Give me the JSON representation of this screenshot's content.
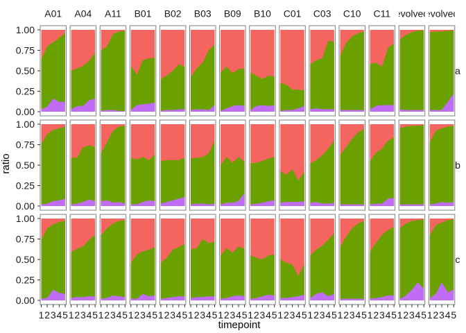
{
  "chart_data": {
    "type": "area",
    "stacked": true,
    "normalized": true,
    "xlabel": "timepoint",
    "ylabel": "ratio",
    "x": [
      1,
      2,
      3,
      4,
      5
    ],
    "y_ticks": [
      "0.00",
      "0.25",
      "0.50",
      "0.75",
      "1.00"
    ],
    "ylim": [
      0,
      1
    ],
    "columns": [
      "A01",
      "A04",
      "A11",
      "B01",
      "B02",
      "B03",
      "B09",
      "B10",
      "C01",
      "C03",
      "C10",
      "C11",
      "evolved",
      "evolved"
    ],
    "rows": [
      "a",
      "b",
      "c"
    ],
    "series_colors": {
      "purple": "#c06cf6",
      "green": "#6aa100",
      "red": "#f4655f"
    },
    "panels": [
      [
        {
          "column": "A01",
          "purple": [
            0.03,
            0.06,
            0.16,
            0.12,
            0.12
          ],
          "top": [
            0.64,
            0.8,
            0.85,
            0.9,
            0.96
          ]
        },
        {
          "column": "A04",
          "purple": [
            0.03,
            0.07,
            0.07,
            0.14,
            0.16
          ],
          "top": [
            0.5,
            0.53,
            0.56,
            0.62,
            0.72
          ]
        },
        {
          "column": "A11",
          "purple": [
            0.01,
            0.02,
            0.02,
            0.01,
            0.01
          ],
          "top": [
            0.75,
            0.8,
            0.95,
            0.98,
            0.99
          ]
        },
        {
          "column": "B01",
          "purple": [
            0.02,
            0.08,
            0.09,
            0.1,
            0.11
          ],
          "top": [
            0.56,
            0.45,
            0.63,
            0.65,
            0.66
          ]
        },
        {
          "column": "B02",
          "purple": [
            0.01,
            0.02,
            0.02,
            0.03,
            0.03
          ],
          "top": [
            0.4,
            0.44,
            0.5,
            0.58,
            0.55
          ]
        },
        {
          "column": "B03",
          "purple": [
            0.02,
            0.03,
            0.03,
            0.02,
            0.08
          ],
          "top": [
            0.42,
            0.53,
            0.6,
            0.75,
            0.82
          ]
        },
        {
          "column": "B09",
          "purple": [
            0.01,
            0.04,
            0.07,
            0.08,
            0.07
          ],
          "top": [
            0.48,
            0.55,
            0.47,
            0.52,
            0.53
          ]
        },
        {
          "column": "B10",
          "purple": [
            0.02,
            0.07,
            0.08,
            0.07,
            0.08
          ],
          "top": [
            0.48,
            0.44,
            0.4,
            0.44,
            0.43
          ]
        },
        {
          "column": "C01",
          "purple": [
            0.01,
            0.02,
            0.02,
            0.04,
            0.07
          ],
          "top": [
            0.35,
            0.33,
            0.27,
            0.27,
            0.26
          ]
        },
        {
          "column": "C03",
          "purple": [
            0.03,
            0.04,
            0.03,
            0.03,
            0.03
          ],
          "top": [
            0.58,
            0.63,
            0.65,
            0.87,
            0.85
          ]
        },
        {
          "column": "C10",
          "purple": [
            0.02,
            0.02,
            0.02,
            0.02,
            0.02
          ],
          "top": [
            0.68,
            0.84,
            0.92,
            0.96,
            0.98
          ]
        },
        {
          "column": "C11",
          "purple": [
            0.03,
            0.07,
            0.08,
            0.08,
            0.08
          ],
          "top": [
            0.58,
            0.6,
            0.55,
            0.78,
            0.83
          ]
        },
        {
          "column": "evolved",
          "purple": [
            0.03,
            0.02,
            0.02,
            0.02,
            0.02
          ],
          "top": [
            0.88,
            0.94,
            0.97,
            0.99,
            0.99
          ]
        },
        {
          "column": "evolved",
          "purple": [
            0.02,
            0.02,
            0.02,
            0.12,
            0.22
          ],
          "top": [
            0.97,
            0.98,
            0.98,
            0.99,
            0.99
          ]
        }
      ],
      [
        {
          "column": "A01",
          "purple": [
            0.02,
            0.03,
            0.06,
            0.07,
            0.09
          ],
          "top": [
            0.76,
            0.88,
            0.93,
            0.95,
            0.97
          ]
        },
        {
          "column": "A04",
          "purple": [
            0.02,
            0.03,
            0.05,
            0.08,
            0.06
          ],
          "top": [
            0.59,
            0.59,
            0.72,
            0.74,
            0.72
          ]
        },
        {
          "column": "A11",
          "purple": [
            0.06,
            0.07,
            0.04,
            0.05,
            0.03
          ],
          "top": [
            0.65,
            0.78,
            0.92,
            0.97,
            0.98
          ]
        },
        {
          "column": "B01",
          "purple": [
            0.02,
            0.02,
            0.05,
            0.07,
            0.06
          ],
          "top": [
            0.59,
            0.57,
            0.6,
            0.56,
            0.63
          ]
        },
        {
          "column": "B02",
          "purple": [
            0.03,
            0.05,
            0.07,
            0.09,
            0.11
          ],
          "top": [
            0.55,
            0.56,
            0.56,
            0.56,
            0.59
          ]
        },
        {
          "column": "B03",
          "purple": [
            0.02,
            0.03,
            0.03,
            0.02,
            0.03
          ],
          "top": [
            0.58,
            0.59,
            0.6,
            0.64,
            0.8
          ]
        },
        {
          "column": "B09",
          "purple": [
            0.02,
            0.04,
            0.04,
            0.06,
            0.16
          ],
          "top": [
            0.5,
            0.6,
            0.53,
            0.6,
            0.54
          ]
        },
        {
          "column": "B10",
          "purple": [
            0.02,
            0.03,
            0.04,
            0.06,
            0.07
          ],
          "top": [
            0.52,
            0.53,
            0.55,
            0.58,
            0.6
          ]
        },
        {
          "column": "C01",
          "purple": [
            0.04,
            0.05,
            0.05,
            0.05,
            0.06
          ],
          "top": [
            0.43,
            0.38,
            0.45,
            0.31,
            0.42
          ]
        },
        {
          "column": "C03",
          "purple": [
            0.04,
            0.05,
            0.03,
            0.03,
            0.04
          ],
          "top": [
            0.52,
            0.56,
            0.62,
            0.7,
            0.8
          ]
        },
        {
          "column": "C10",
          "purple": [
            0.02,
            0.02,
            0.02,
            0.02,
            0.02
          ],
          "top": [
            0.62,
            0.72,
            0.82,
            0.9,
            0.94
          ]
        },
        {
          "column": "C11",
          "purple": [
            0.02,
            0.03,
            0.03,
            0.09,
            0.1
          ],
          "top": [
            0.55,
            0.65,
            0.7,
            0.8,
            0.84
          ]
        },
        {
          "column": "evolved",
          "purple": [
            0.02,
            0.02,
            0.02,
            0.02,
            0.02
          ],
          "top": [
            0.95,
            0.97,
            0.98,
            0.98,
            0.99
          ]
        },
        {
          "column": "evolved",
          "purple": [
            0.02,
            0.03,
            0.05,
            0.04,
            0.05
          ],
          "top": [
            0.78,
            0.92,
            0.95,
            0.97,
            0.98
          ]
        }
      ],
      [
        {
          "column": "A01",
          "purple": [
            0.02,
            0.03,
            0.13,
            0.09,
            0.08
          ],
          "top": [
            0.74,
            0.88,
            0.93,
            0.96,
            0.97
          ]
        },
        {
          "column": "A04",
          "purple": [
            0.03,
            0.04,
            0.04,
            0.05,
            0.05
          ],
          "top": [
            0.59,
            0.63,
            0.66,
            0.74,
            0.8
          ]
        },
        {
          "column": "A11",
          "purple": [
            0.02,
            0.03,
            0.06,
            0.05,
            0.04
          ],
          "top": [
            0.8,
            0.88,
            0.94,
            0.97,
            0.98
          ]
        },
        {
          "column": "B01",
          "purple": [
            0.02,
            0.02,
            0.08,
            0.05,
            0.06
          ],
          "top": [
            0.46,
            0.56,
            0.6,
            0.62,
            0.65
          ]
        },
        {
          "column": "B02",
          "purple": [
            0.02,
            0.03,
            0.04,
            0.05,
            0.05
          ],
          "top": [
            0.46,
            0.52,
            0.62,
            0.65,
            0.69
          ]
        },
        {
          "column": "B03",
          "purple": [
            0.03,
            0.04,
            0.04,
            0.05,
            0.05
          ],
          "top": [
            0.62,
            0.64,
            0.75,
            0.7,
            0.72
          ]
        },
        {
          "column": "B09",
          "purple": [
            0.02,
            0.03,
            0.05,
            0.06,
            0.05
          ],
          "top": [
            0.55,
            0.64,
            0.58,
            0.66,
            0.63
          ]
        },
        {
          "column": "B10",
          "purple": [
            0.02,
            0.03,
            0.05,
            0.07,
            0.06
          ],
          "top": [
            0.55,
            0.52,
            0.5,
            0.55,
            0.56
          ]
        },
        {
          "column": "C01",
          "purple": [
            0.03,
            0.03,
            0.04,
            0.05,
            0.07
          ],
          "top": [
            0.5,
            0.46,
            0.44,
            0.3,
            0.44
          ]
        },
        {
          "column": "C03",
          "purple": [
            0.03,
            0.08,
            0.1,
            0.05,
            0.08
          ],
          "top": [
            0.55,
            0.62,
            0.67,
            0.74,
            0.82
          ]
        },
        {
          "column": "C10",
          "purple": [
            0.02,
            0.02,
            0.02,
            0.02,
            0.02
          ],
          "top": [
            0.65,
            0.78,
            0.88,
            0.94,
            0.97
          ]
        },
        {
          "column": "C11",
          "purple": [
            0.02,
            0.03,
            0.04,
            0.06,
            0.06
          ],
          "top": [
            0.6,
            0.7,
            0.8,
            0.86,
            0.9
          ]
        },
        {
          "column": "evolved",
          "purple": [
            0.02,
            0.06,
            0.13,
            0.22,
            0.14
          ],
          "top": [
            0.88,
            0.94,
            0.97,
            0.98,
            0.99
          ]
        },
        {
          "column": "evolved",
          "purple": [
            0.03,
            0.08,
            0.22,
            0.1,
            0.13
          ],
          "top": [
            0.8,
            0.92,
            0.95,
            0.98,
            0.99
          ]
        }
      ]
    ]
  }
}
